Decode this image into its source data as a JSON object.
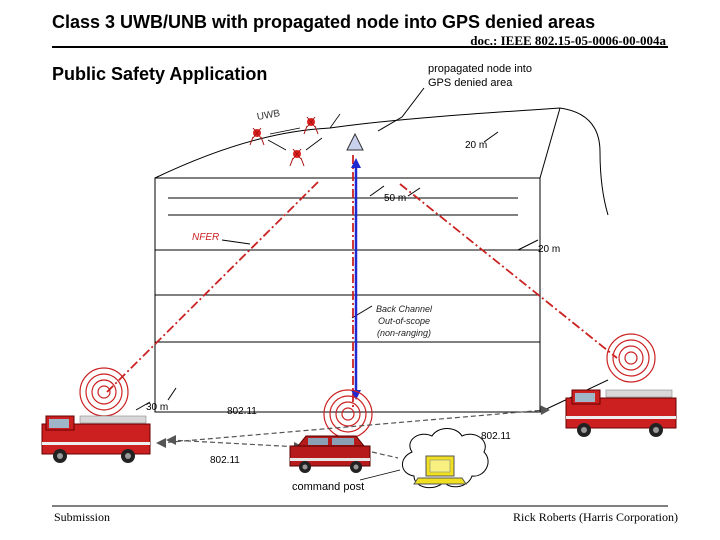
{
  "header": {
    "title": "Class 3 UWB/UNB with propagated node into GPS denied areas",
    "doc_id": "doc.: IEEE 802.15-05-0006-00-004a"
  },
  "slide": {
    "subtitle": "Public Safety Application",
    "callout": [
      "propagated node into",
      "GPS denied area"
    ]
  },
  "labels": {
    "uwb": "UWB",
    "dim_20m_top": "20 m",
    "dim_50m": "50 m",
    "nfer": "NFER",
    "dim_20m_right": "20 m",
    "back_channel": [
      "Back Channel",
      "Out-of-scope",
      "(non-ranging)"
    ],
    "dim_30m": "30 m",
    "link_80211_a": "802.11",
    "link_80211_b": "802.11",
    "link_80211_c": "802.11",
    "command_post": "command post"
  },
  "footer": {
    "left": "Submission",
    "right": "Rick Roberts (Harris Corporation)"
  },
  "colors": {
    "fire_red": "#cc2020",
    "ranging_red": "#cc2222",
    "back_channel_blue": "#1e2ad0",
    "laptop_yellow": "#f0e020"
  }
}
